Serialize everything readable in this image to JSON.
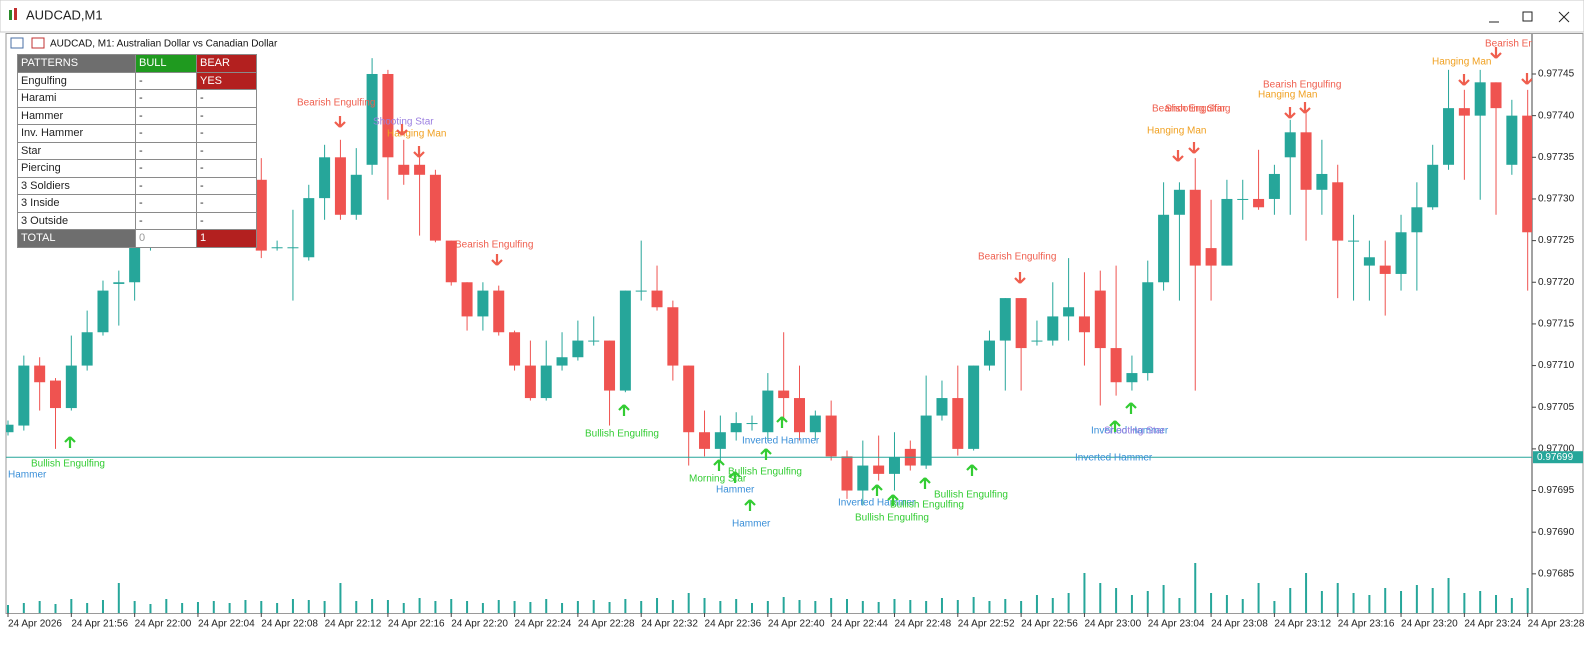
{
  "window": {
    "title": "AUDCAD,M1"
  },
  "table": {
    "header": [
      "PATTERNS",
      "BULL",
      "BEAR"
    ],
    "rows": [
      [
        "Engulfing",
        "-",
        "YES"
      ],
      [
        "Harami",
        "-",
        "-"
      ],
      [
        "Hammer",
        "-",
        "-"
      ],
      [
        "Inv. Hammer",
        "-",
        "-"
      ],
      [
        "Star",
        "-",
        "-"
      ],
      [
        "Piercing",
        "-",
        "-"
      ],
      [
        "3 Soldiers",
        "-",
        "-"
      ],
      [
        "3 Inside",
        "-",
        "-"
      ],
      [
        "3 Outside",
        "-",
        "-"
      ]
    ],
    "total": [
      "TOTAL",
      0,
      1
    ]
  },
  "chart_data": {
    "type": "candlestick",
    "title": "AUDCAD, M1:  Australian Dollar vs Canadian Dollar",
    "up_color": "#26a69a",
    "down_color": "#ef5350",
    "categories": [
      "24 Apr 2026",
      null,
      null,
      null,
      "24 Apr 21:56",
      null,
      null,
      null,
      "24 Apr 22:00",
      null,
      null,
      null,
      "24 Apr 22:04",
      null,
      null,
      null,
      "24 Apr 22:08",
      null,
      null,
      null,
      "24 Apr 22:12",
      null,
      null,
      null,
      "24 Apr 22:16",
      null,
      null,
      null,
      "24 Apr 22:20",
      null,
      null,
      null,
      "24 Apr 22:24",
      null,
      null,
      null,
      "24 Apr 22:28",
      null,
      null,
      null,
      "24 Apr 22:32",
      null,
      null,
      null,
      "24 Apr 22:36",
      null,
      null,
      null,
      "24 Apr 22:40",
      null,
      null,
      null,
      "24 Apr 22:44",
      null,
      null,
      null,
      "24 Apr 22:48",
      null,
      null,
      null,
      "24 Apr 22:52",
      null,
      null,
      null,
      "24 Apr 22:56",
      null,
      null,
      null,
      "24 Apr 23:00",
      null,
      null,
      null,
      "24 Apr 23:04",
      null,
      null,
      null,
      "24 Apr 23:08",
      null,
      null,
      null,
      "24 Apr 23:12",
      null,
      null,
      null,
      "24 Apr 23:16",
      null,
      null,
      null,
      "24 Apr 23:20",
      null,
      null,
      null,
      "24 Apr 23:24",
      null,
      null,
      null,
      "24 Apr 23:28"
    ],
    "ohlc": [
      [
        0.97702,
        0.977034,
        0.977016,
        0.977029
      ],
      [
        0.977028,
        0.977112,
        0.977022,
        0.9771
      ],
      [
        0.9771,
        0.97711,
        0.977046,
        0.97708
      ],
      [
        0.977082,
        0.977085,
        0.977,
        0.977049
      ],
      [
        0.977049,
        0.977136,
        0.977046,
        0.9771
      ],
      [
        0.9771,
        0.977166,
        0.977094,
        0.97714
      ],
      [
        0.97714,
        0.977202,
        0.977136,
        0.97719
      ],
      [
        0.977198,
        0.977214,
        0.977148,
        0.9772
      ],
      [
        0.9772,
        0.97725,
        0.977178,
        0.977244
      ],
      [
        0.977244,
        0.977256,
        0.977238,
        0.97725
      ],
      [
        0.97725,
        0.977287,
        0.977244,
        0.977281
      ],
      [
        0.977281,
        0.977311,
        0.977275,
        0.977299
      ],
      [
        0.977299,
        0.977301,
        0.977256,
        0.977262
      ],
      [
        0.977262,
        0.977317,
        0.977256,
        0.977311
      ],
      [
        0.977311,
        0.977341,
        0.977301,
        0.977335
      ],
      [
        0.977335,
        0.977349,
        0.977317,
        0.977323
      ],
      [
        0.977323,
        0.977349,
        0.977229,
        0.977238
      ],
      [
        0.977242,
        0.97725,
        0.977238,
        0.977242
      ],
      [
        0.977242,
        0.977287,
        0.977178,
        0.977242
      ],
      [
        0.97723,
        0.977317,
        0.977226,
        0.977301
      ],
      [
        0.977301,
        0.977365,
        0.977275,
        0.97735
      ],
      [
        0.97735,
        0.977371,
        0.977275,
        0.977281
      ],
      [
        0.977281,
        0.977361,
        0.977275,
        0.977329
      ],
      [
        0.977341,
        0.977469,
        0.977329,
        0.97745
      ],
      [
        0.97745,
        0.977455,
        0.977299,
        0.97735
      ],
      [
        0.977341,
        0.977371,
        0.977317,
        0.977329
      ],
      [
        0.977341,
        0.977359,
        0.977256,
        0.977329
      ],
      [
        0.977329,
        0.977335,
        0.977248,
        0.97725
      ],
      [
        0.97725,
        0.97725,
        0.977196,
        0.9772
      ],
      [
        0.9772,
        0.9772,
        0.977142,
        0.977159
      ],
      [
        0.977159,
        0.9772,
        0.977142,
        0.97719
      ],
      [
        0.97719,
        0.977196,
        0.977136,
        0.97714
      ],
      [
        0.97714,
        0.977142,
        0.977094,
        0.9771
      ],
      [
        0.9771,
        0.97713,
        0.977058,
        0.977061
      ],
      [
        0.977061,
        0.97713,
        0.977058,
        0.9771
      ],
      [
        0.9771,
        0.97714,
        0.977094,
        0.97711
      ],
      [
        0.97711,
        0.977154,
        0.977106,
        0.97713
      ],
      [
        0.97713,
        0.977159,
        0.977124,
        0.97713
      ],
      [
        0.97713,
        0.97713,
        0.977028,
        0.97707
      ],
      [
        0.97707,
        0.97719,
        0.977068,
        0.97719
      ],
      [
        0.97719,
        0.97725,
        0.977178,
        0.97719
      ],
      [
        0.97719,
        0.97722,
        0.977166,
        0.97717
      ],
      [
        0.97717,
        0.977178,
        0.977082,
        0.9771
      ],
      [
        0.9771,
        0.9771,
        0.97698,
        0.97702
      ],
      [
        0.97702,
        0.977046,
        0.976991,
        0.977
      ],
      [
        0.977,
        0.97704,
        0.976986,
        0.97702
      ],
      [
        0.97702,
        0.977044,
        0.97701,
        0.977031
      ],
      [
        0.977031,
        0.97704,
        0.977022,
        0.977031
      ],
      [
        0.97702,
        0.977091,
        0.97701,
        0.97707
      ],
      [
        0.97707,
        0.97714,
        0.977034,
        0.977061
      ],
      [
        0.977061,
        0.9771,
        0.97701,
        0.97702
      ],
      [
        0.97702,
        0.977046,
        0.97701,
        0.97704
      ],
      [
        0.97704,
        0.977058,
        0.976986,
        0.976991
      ],
      [
        0.976991,
        0.976998,
        0.97694,
        0.97695
      ],
      [
        0.97695,
        0.97701,
        0.976932,
        0.97698
      ],
      [
        0.97698,
        0.977016,
        0.976962,
        0.97697
      ],
      [
        0.97697,
        0.97702,
        0.97695,
        0.97699
      ],
      [
        0.977,
        0.97701,
        0.976974,
        0.97698
      ],
      [
        0.97698,
        0.977088,
        0.976976,
        0.97704
      ],
      [
        0.97704,
        0.977082,
        0.977034,
        0.977061
      ],
      [
        0.977061,
        0.9771,
        0.976992,
        0.977
      ],
      [
        0.977,
        0.9771,
        0.976998,
        0.9771
      ],
      [
        0.9771,
        0.977142,
        0.977094,
        0.97713
      ],
      [
        0.97713,
        0.977181,
        0.97707,
        0.977181
      ],
      [
        0.977181,
        0.977181,
        0.97707,
        0.977121
      ],
      [
        0.97713,
        0.977154,
        0.977124,
        0.97713
      ],
      [
        0.97713,
        0.9772,
        0.977124,
        0.977159
      ],
      [
        0.977159,
        0.977229,
        0.97713,
        0.97717
      ],
      [
        0.977159,
        0.977212,
        0.9771,
        0.97714
      ],
      [
        0.97719,
        0.977214,
        0.977052,
        0.977121
      ],
      [
        0.977121,
        0.97722,
        0.977064,
        0.97708
      ],
      [
        0.97708,
        0.977112,
        0.97707,
        0.977091
      ],
      [
        0.977091,
        0.977226,
        0.977082,
        0.9772
      ],
      [
        0.9772,
        0.97732,
        0.97719,
        0.977281
      ],
      [
        0.977281,
        0.97732,
        0.977178,
        0.977311
      ],
      [
        0.977311,
        0.977349,
        0.97707,
        0.97722
      ],
      [
        0.977241,
        0.977299,
        0.977178,
        0.97722
      ],
      [
        0.97722,
        0.977323,
        0.97722,
        0.9773
      ],
      [
        0.9773,
        0.977323,
        0.977275,
        0.9773
      ],
      [
        0.9773,
        0.977359,
        0.977287,
        0.97729
      ],
      [
        0.9773,
        0.977341,
        0.977281,
        0.97733
      ],
      [
        0.97735,
        0.977395,
        0.977281,
        0.97738
      ],
      [
        0.97738,
        0.977407,
        0.97725,
        0.977311
      ],
      [
        0.977311,
        0.977371,
        0.977281,
        0.97733
      ],
      [
        0.97732,
        0.977341,
        0.977181,
        0.97725
      ],
      [
        0.97725,
        0.977281,
        0.977178,
        0.97725
      ],
      [
        0.97722,
        0.97725,
        0.977178,
        0.97723
      ],
      [
        0.97722,
        0.97725,
        0.97716,
        0.97721
      ],
      [
        0.97721,
        0.977281,
        0.97719,
        0.97726
      ],
      [
        0.97726,
        0.97732,
        0.97719,
        0.97729
      ],
      [
        0.97729,
        0.977365,
        0.977287,
        0.977341
      ],
      [
        0.977341,
        0.977455,
        0.977335,
        0.977409
      ],
      [
        0.977409,
        0.977431,
        0.977323,
        0.9774
      ],
      [
        0.9774,
        0.977455,
        0.977299,
        0.97744
      ],
      [
        0.97744,
        0.97744,
        0.977281,
        0.977409
      ],
      [
        0.977341,
        0.977419,
        0.977329,
        0.9774
      ],
      [
        0.9774,
        0.977431,
        0.97719,
        0.97726
      ]
    ],
    "volume": [
      8,
      10,
      12,
      9,
      14,
      10,
      13,
      30,
      12,
      9,
      14,
      10,
      11,
      12,
      10,
      13,
      12,
      10,
      14,
      13,
      12,
      30,
      12,
      14,
      13,
      10,
      15,
      12,
      14,
      12,
      10,
      13,
      12,
      11,
      14,
      10,
      12,
      13,
      11,
      14,
      12,
      15,
      13,
      20,
      15,
      12,
      14,
      10,
      12,
      16,
      13,
      12,
      15,
      14,
      12,
      11,
      14,
      13,
      12,
      15,
      13,
      16,
      12,
      14,
      12,
      18,
      15,
      20,
      40,
      30,
      25,
      18,
      22,
      28,
      15,
      50,
      20,
      18,
      14,
      30,
      12,
      25,
      40,
      22,
      30,
      20,
      18,
      25,
      22,
      28,
      25,
      35,
      20,
      22,
      18,
      15,
      25
    ],
    "last_price": 0.97699,
    "last_price_color": "#26a69a",
    "ylim": [
      0.976803,
      0.977498
    ],
    "yticks": [
      0.97685,
      {
        "value": 0.9769,
        "label": "0.97690"
      },
      0.97695,
      {
        "value": 0.977,
        "label": "0.97700"
      },
      0.97705,
      {
        "value": 0.9771,
        "label": "0.97710"
      },
      0.97715,
      {
        "value": 0.9772,
        "label": "0.97720"
      },
      0.97725,
      {
        "value": 0.9773,
        "label": "0.97730"
      },
      0.97735,
      {
        "value": 0.9774,
        "label": "0.97740"
      },
      0.97745
    ],
    "annotations": [
      {
        "text": "Bearish Engulfing",
        "color": "#ef5e4e"
      },
      {
        "text": "Shooting Star",
        "color": "#9b7fe0"
      },
      {
        "text": "Hanging Man",
        "color": "#f0a020"
      },
      {
        "text": "Bearish Engulfing",
        "color": "#ef5e4e"
      },
      {
        "text": "Bullish Engulfing",
        "color": "#33cc33"
      },
      {
        "text": "Hammer",
        "color": "#3a8fd8"
      },
      {
        "text": "Bullish Engulfing",
        "color": "#33cc33"
      },
      {
        "text": "Inverted Hammer",
        "color": "#3a8fd8"
      },
      {
        "text": "Bullish Engulfing",
        "color": "#33cc33"
      },
      {
        "text": "Morning Star",
        "color": "#33cc33"
      },
      {
        "text": "Hammer",
        "color": "#3a8fd8"
      },
      {
        "text": "Hammer",
        "color": "#3a8fd8"
      },
      {
        "text": "Inverted Hammer",
        "color": "#3a8fd8"
      },
      {
        "text": "Bullish Engulfing",
        "color": "#33cc33"
      },
      {
        "text": "Bullish Engulfing",
        "color": "#33cc33"
      },
      {
        "text": "Bullish Engulfing",
        "color": "#33cc33"
      },
      {
        "text": "Bearish Engulfing",
        "color": "#ef5e4e"
      },
      {
        "text": "Inverted Hammer",
        "color": "#3a8fd8"
      },
      {
        "text": "Shooting Star",
        "color": "#9b7fe0"
      },
      {
        "text": "Inverted Hammer",
        "color": "#3a8fd8"
      },
      {
        "text": "Bearish Engulfing",
        "color": "#ef5e4e"
      },
      {
        "text": "Shooting Star",
        "color": "#ef5e4e"
      },
      {
        "text": "Hanging Man",
        "color": "#f0a020"
      },
      {
        "text": "Bearish Engulfing",
        "color": "#ef5e4e"
      },
      {
        "text": "Hanging Man",
        "color": "#f0a020"
      },
      {
        "text": "Hanging Man",
        "color": "#f0a020"
      },
      {
        "text": "Bearish Engulfing",
        "color": "#ef5e4e"
      }
    ]
  }
}
